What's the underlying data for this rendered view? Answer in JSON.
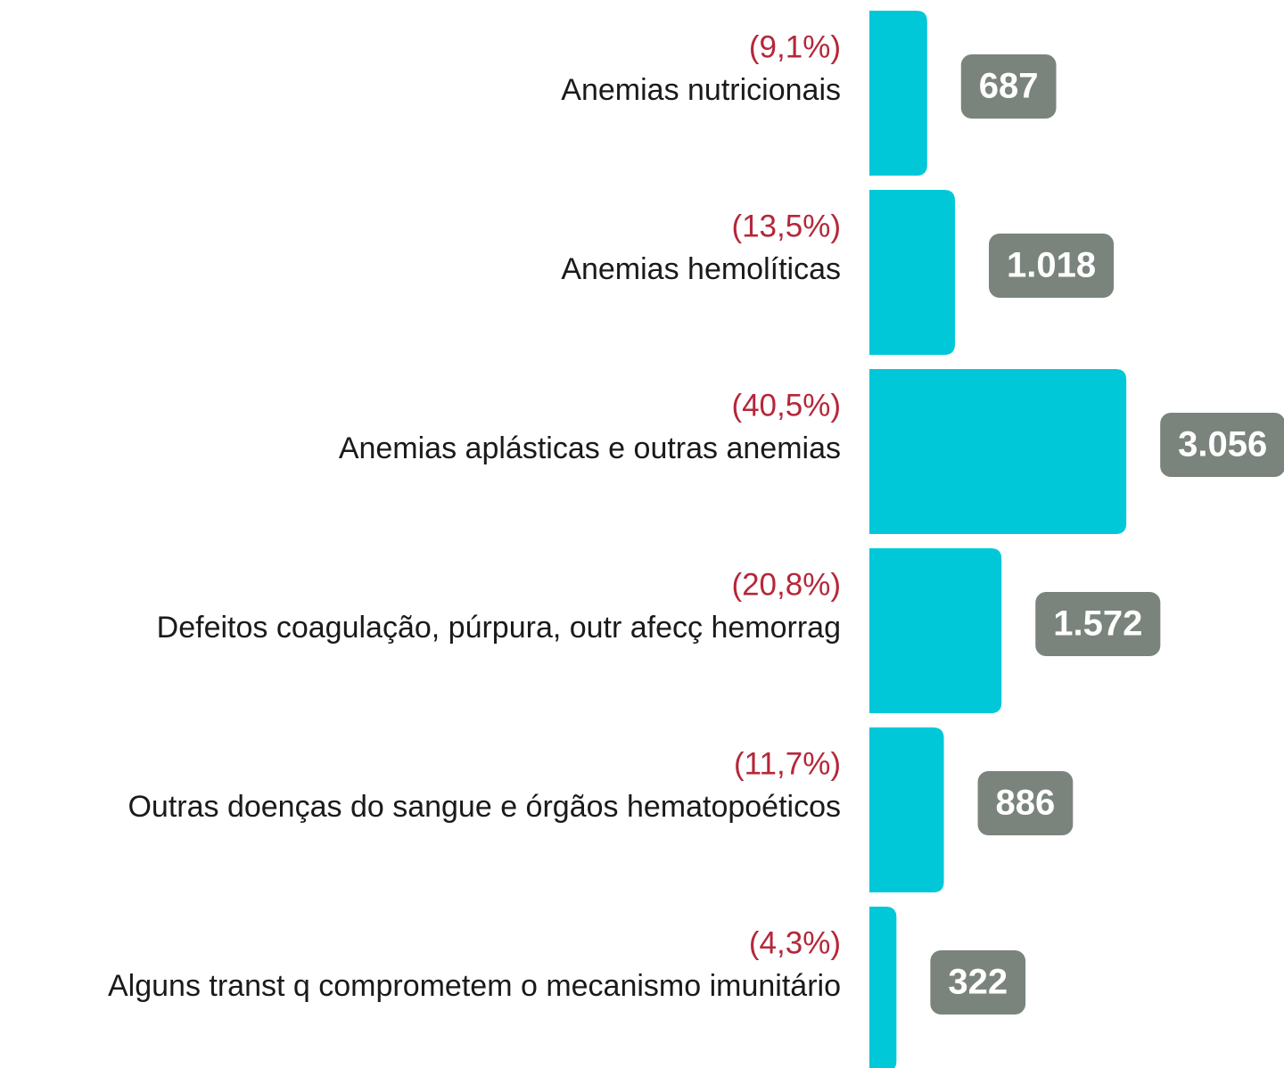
{
  "chart_data": {
    "type": "barh",
    "categories": [
      "Anemias nutricionais",
      "Anemias hemolíticas",
      "Anemias aplásticas e outras anemias",
      "Defeitos coagulação, púrpura, outr afecç hemorrag",
      "Outras doenças do sangue e órgãos hematopoéticos",
      "Alguns transt q comprometem o mecanismo imunitário"
    ],
    "share_labels": [
      "(9,1%)",
      "(13,5%)",
      "(40,5%)",
      "(20,8%)",
      "(11,7%)",
      "(4,3%)"
    ],
    "values": [
      687,
      1018,
      3056,
      1572,
      886,
      322
    ],
    "value_labels": [
      "687",
      "1.018",
      "3.056",
      "1.572",
      "886",
      "322"
    ],
    "color": "#00c8d8",
    "label_color": "#7a847c"
  }
}
